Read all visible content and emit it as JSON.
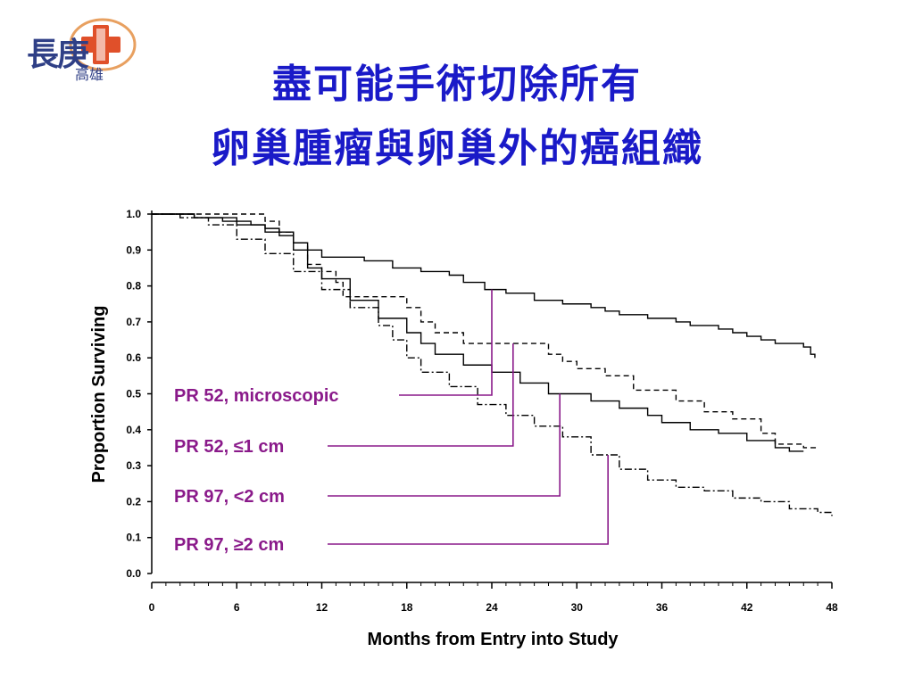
{
  "logo": {
    "text_main": "長庚",
    "text_sub": "高雄"
  },
  "title": {
    "line1": "盡可能手術切除所有",
    "line2": "卵巢腫瘤與卵巢外的癌組織"
  },
  "chart_data": {
    "type": "line",
    "xlabel": "Months from Entry into Study",
    "ylabel": "Proportion Surviving",
    "xlim": [
      0,
      48
    ],
    "ylim": [
      0,
      1
    ],
    "xticks": [
      "0",
      "6",
      "12",
      "18",
      "24",
      "30",
      "36",
      "42",
      "48"
    ],
    "yticks": [
      "0.0",
      "0.1",
      "0.2",
      "0.3",
      "0.4",
      "0.5",
      "0.6",
      "0.7",
      "0.8",
      "0.9",
      "1.0"
    ],
    "grid": false,
    "series": [
      {
        "name": "PR 52, microscopic",
        "style": "solid",
        "points": [
          [
            0,
            1.0
          ],
          [
            3,
            0.99
          ],
          [
            5,
            0.98
          ],
          [
            7,
            0.97
          ],
          [
            8,
            0.96
          ],
          [
            9,
            0.94
          ],
          [
            10,
            0.92
          ],
          [
            11,
            0.9
          ],
          [
            12,
            0.88
          ],
          [
            15,
            0.87
          ],
          [
            17,
            0.85
          ],
          [
            19,
            0.84
          ],
          [
            21,
            0.83
          ],
          [
            22,
            0.81
          ],
          [
            23.5,
            0.79
          ],
          [
            25,
            0.78
          ],
          [
            27,
            0.76
          ],
          [
            29,
            0.75
          ],
          [
            31,
            0.74
          ],
          [
            32,
            0.73
          ],
          [
            33,
            0.72
          ],
          [
            35,
            0.71
          ],
          [
            37,
            0.7
          ],
          [
            38,
            0.69
          ],
          [
            40,
            0.68
          ],
          [
            41,
            0.67
          ],
          [
            42,
            0.66
          ],
          [
            43,
            0.65
          ],
          [
            44,
            0.64
          ],
          [
            46,
            0.63
          ],
          [
            46.5,
            0.61
          ],
          [
            46.8,
            0.6
          ]
        ]
      },
      {
        "name": "PR 52, ≤1 cm",
        "style": "dashed",
        "points": [
          [
            0,
            1.0
          ],
          [
            5,
            1.0
          ],
          [
            8,
            0.98
          ],
          [
            9,
            0.95
          ],
          [
            10,
            0.92
          ],
          [
            11,
            0.86
          ],
          [
            12,
            0.84
          ],
          [
            13,
            0.81
          ],
          [
            13.5,
            0.77
          ],
          [
            17,
            0.77
          ],
          [
            18,
            0.74
          ],
          [
            19,
            0.7
          ],
          [
            20,
            0.67
          ],
          [
            22,
            0.64
          ],
          [
            25,
            0.64
          ],
          [
            28,
            0.61
          ],
          [
            29,
            0.59
          ],
          [
            30,
            0.57
          ],
          [
            32,
            0.55
          ],
          [
            34,
            0.51
          ],
          [
            37,
            0.48
          ],
          [
            39,
            0.45
          ],
          [
            41,
            0.43
          ],
          [
            43,
            0.39
          ],
          [
            44,
            0.36
          ],
          [
            46,
            0.35
          ],
          [
            47,
            0.35
          ]
        ]
      },
      {
        "name": "PR 97, <2 cm",
        "style": "solid",
        "points": [
          [
            0,
            1.0
          ],
          [
            3,
            0.99
          ],
          [
            6,
            0.97
          ],
          [
            8,
            0.95
          ],
          [
            10,
            0.9
          ],
          [
            11,
            0.85
          ],
          [
            12,
            0.82
          ],
          [
            14,
            0.76
          ],
          [
            16,
            0.71
          ],
          [
            18,
            0.67
          ],
          [
            19,
            0.64
          ],
          [
            20,
            0.61
          ],
          [
            22,
            0.58
          ],
          [
            24,
            0.56
          ],
          [
            26,
            0.53
          ],
          [
            28,
            0.5
          ],
          [
            30,
            0.5
          ],
          [
            31,
            0.48
          ],
          [
            33,
            0.46
          ],
          [
            35,
            0.44
          ],
          [
            36,
            0.42
          ],
          [
            38,
            0.4
          ],
          [
            40,
            0.39
          ],
          [
            42,
            0.37
          ],
          [
            44,
            0.35
          ],
          [
            45,
            0.34
          ],
          [
            46,
            0.34
          ]
        ]
      },
      {
        "name": "PR 97, ≥2 cm",
        "style": "dashdot",
        "points": [
          [
            0,
            1.0
          ],
          [
            2,
            0.99
          ],
          [
            4,
            0.97
          ],
          [
            6,
            0.93
          ],
          [
            8,
            0.89
          ],
          [
            10,
            0.84
          ],
          [
            12,
            0.79
          ],
          [
            14,
            0.74
          ],
          [
            16,
            0.69
          ],
          [
            17,
            0.65
          ],
          [
            18,
            0.6
          ],
          [
            19,
            0.56
          ],
          [
            21,
            0.52
          ],
          [
            23,
            0.47
          ],
          [
            25,
            0.44
          ],
          [
            27,
            0.41
          ],
          [
            29,
            0.38
          ],
          [
            31,
            0.33
          ],
          [
            33,
            0.29
          ],
          [
            35,
            0.26
          ],
          [
            37,
            0.24
          ],
          [
            39,
            0.23
          ],
          [
            41,
            0.21
          ],
          [
            43,
            0.2
          ],
          [
            45,
            0.18
          ],
          [
            47,
            0.17
          ],
          [
            48,
            0.16
          ]
        ]
      }
    ],
    "annotations": [
      {
        "label": "PR 52, microscopic",
        "series": 0,
        "x": 24
      },
      {
        "label": "PR 52, ≤1 cm",
        "series": 1,
        "x": 25.5
      },
      {
        "label": "PR 97, <2 cm",
        "series": 2,
        "x": 28.8
      },
      {
        "label": "PR 97, ≥2 cm",
        "series": 3,
        "x": 32.2
      }
    ],
    "colors": {
      "line": "#000000",
      "annotation": "#8a1a8a",
      "title": "#1a1ac8",
      "logo": "#2f3f86",
      "logo_accent": "#e0502a"
    }
  }
}
